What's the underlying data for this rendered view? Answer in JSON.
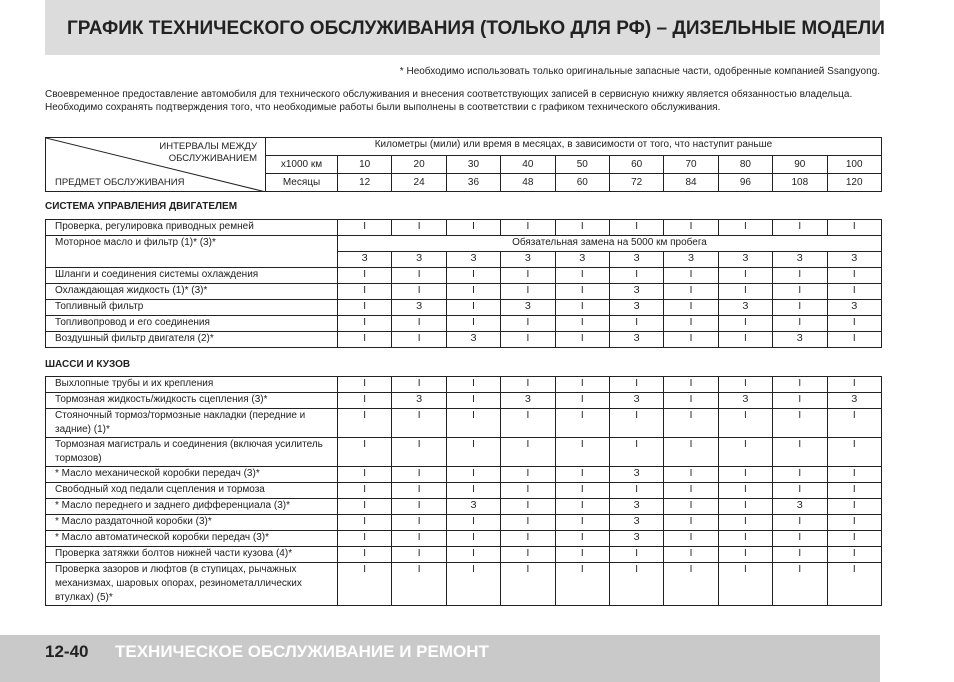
{
  "header": {
    "title": "ГРАФИК ТЕХНИЧЕСКОГО ОБСЛУЖИВАНИЯ (ТОЛЬКО ДЛЯ РФ) – ДИЗЕЛЬНЫЕ МОДЕЛИ",
    "note": "* Необходимо использовать только оригинальные запасные части, одобренные компанией Ssangyong.",
    "intro": "Своевременное предоставление автомобиля для технического обслуживания и внесения соответствующих записей в сервисную книжку является обязанностью владельца. Необходимо сохранять подтверждения того, что необходимые работы были выполнены в соответствии с графиком технического обслуживания."
  },
  "table": {
    "corner_top": "ИНТЕРВАЛЫ МЕЖДУ ОБСЛУЖИВАНИЕМ",
    "corner_bottom": "ПРЕДМЕТ ОБСЛУЖИВАНИЯ",
    "interval_heading": "Километры (мили) или время в месяцах, в зависимости от того, что наступит раньше",
    "km_label": "x1000 км",
    "km": [
      10,
      20,
      30,
      40,
      50,
      60,
      70,
      80,
      90,
      100
    ],
    "months_label": "Месяцы",
    "months": [
      12,
      24,
      36,
      48,
      60,
      72,
      84,
      96,
      108,
      120
    ]
  },
  "sections": [
    {
      "title": "СИСТЕМА УПРАВЛЕНИЯ ДВИГАТЕЛЕМ",
      "rows": [
        {
          "item": "Проверка, регулировка приводных ремней",
          "values": [
            "I",
            "I",
            "I",
            "I",
            "I",
            "I",
            "I",
            "I",
            "I",
            "I"
          ]
        },
        {
          "item": "Моторное масло и фильтр (1)* (3)*",
          "note": "Обязательная замена на 5000 км пробега",
          "values": [
            "З",
            "З",
            "З",
            "З",
            "З",
            "З",
            "З",
            "З",
            "З",
            "З"
          ]
        },
        {
          "item": "Шланги и соединения системы охлаждения",
          "values": [
            "I",
            "I",
            "I",
            "I",
            "I",
            "I",
            "I",
            "I",
            "I",
            "I"
          ]
        },
        {
          "item": "Охлаждающая жидкость (1)* (3)*",
          "values": [
            "I",
            "I",
            "I",
            "I",
            "I",
            "З",
            "I",
            "I",
            "I",
            "I"
          ]
        },
        {
          "item": "Топливный фильтр",
          "values": [
            "I",
            "З",
            "I",
            "З",
            "I",
            "З",
            "I",
            "З",
            "I",
            "З"
          ]
        },
        {
          "item": "Топливопровод и его соединения",
          "values": [
            "I",
            "I",
            "I",
            "I",
            "I",
            "I",
            "I",
            "I",
            "I",
            "I"
          ]
        },
        {
          "item": "Воздушный фильтр двигателя (2)*",
          "values": [
            "I",
            "I",
            "З",
            "I",
            "I",
            "З",
            "I",
            "I",
            "З",
            "I"
          ]
        }
      ]
    },
    {
      "title": "ШАССИ И КУЗОВ",
      "rows": [
        {
          "item": "Выхлопные трубы и их крепления",
          "values": [
            "I",
            "I",
            "I",
            "I",
            "I",
            "I",
            "I",
            "I",
            "I",
            "I"
          ]
        },
        {
          "item": "Тормозная жидкость/жидкость сцепления (3)*",
          "values": [
            "I",
            "З",
            "I",
            "З",
            "I",
            "З",
            "I",
            "З",
            "I",
            "З"
          ]
        },
        {
          "item": "Стояночный тормоз/тормозные накладки (передние и задние) (1)*",
          "values": [
            "I",
            "I",
            "I",
            "I",
            "I",
            "I",
            "I",
            "I",
            "I",
            "I"
          ]
        },
        {
          "item": "Тормозная магистраль и соединения (включая усилитель тормозов)",
          "values": [
            "I",
            "I",
            "I",
            "I",
            "I",
            "I",
            "I",
            "I",
            "I",
            "I"
          ]
        },
        {
          "item": "* Масло механической коробки передач (3)*",
          "values": [
            "I",
            "I",
            "I",
            "I",
            "I",
            "З",
            "I",
            "I",
            "I",
            "I"
          ]
        },
        {
          "item": "Свободный ход педали сцепления и тормоза",
          "values": [
            "I",
            "I",
            "I",
            "I",
            "I",
            "I",
            "I",
            "I",
            "I",
            "I"
          ]
        },
        {
          "item": "* Масло переднего и заднего дифференциала (3)*",
          "values": [
            "I",
            "I",
            "З",
            "I",
            "I",
            "З",
            "I",
            "I",
            "З",
            "I"
          ]
        },
        {
          "item": "* Масло раздаточной коробки (3)*",
          "values": [
            "I",
            "I",
            "I",
            "I",
            "I",
            "З",
            "I",
            "I",
            "I",
            "I"
          ]
        },
        {
          "item": "* Масло автоматической коробки передач (3)*",
          "values": [
            "I",
            "I",
            "I",
            "I",
            "I",
            "З",
            "I",
            "I",
            "I",
            "I"
          ]
        },
        {
          "item": "Проверка затяжки болтов нижней части кузова (4)*",
          "values": [
            "I",
            "I",
            "I",
            "I",
            "I",
            "I",
            "I",
            "I",
            "I",
            "I"
          ]
        },
        {
          "item": "Проверка зазоров и люфтов (в ступицах, рычажных механизмах, шаровых опорах, резинометаллических втулках) (5)*",
          "values": [
            "I",
            "I",
            "I",
            "I",
            "I",
            "I",
            "I",
            "I",
            "I",
            "I"
          ]
        }
      ]
    }
  ],
  "footer": {
    "page": "12-40",
    "title": "ТЕХНИЧЕСКОЕ ОБСЛУЖИВАНИЕ И РЕМОНТ"
  }
}
